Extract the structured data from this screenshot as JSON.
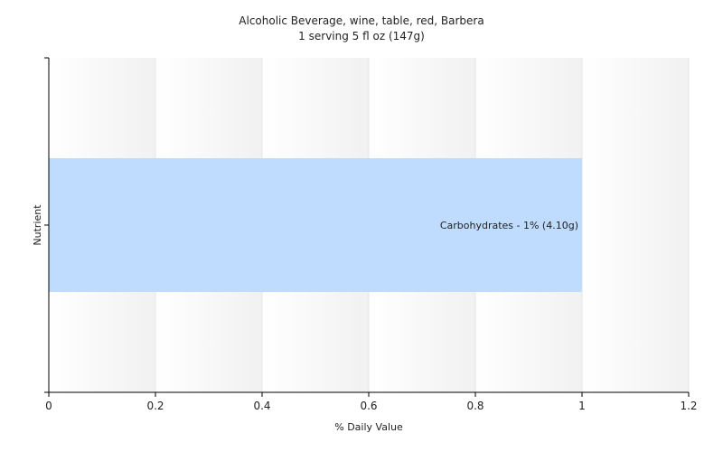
{
  "chart_data": {
    "type": "bar",
    "orientation": "horizontal",
    "title": "Alcoholic Beverage, wine, table, red, Barbera",
    "subtitle": "1 serving 5 fl oz (147g)",
    "xlabel": "% Daily Value",
    "ylabel": "Nutrient",
    "xlim": [
      0,
      1.2
    ],
    "xticks": [
      0,
      0.2,
      0.4,
      0.6,
      0.8,
      1,
      1.2
    ],
    "grid": true,
    "legend": "none",
    "categories": [
      "Carbohydrates"
    ],
    "values": [
      1
    ],
    "data_labels": [
      "Carbohydrates - 1% (4.10g)"
    ],
    "colors": {
      "bar": "#bfdcff",
      "grid": "#e6e6e6",
      "axis": "#000000",
      "plot_band_light": "#ffffff",
      "plot_band_dark": "#f1f1f1"
    }
  }
}
